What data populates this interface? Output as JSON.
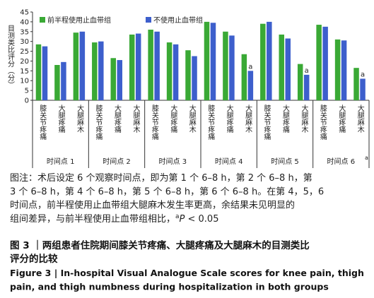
{
  "chart_data": {
    "type": "bar",
    "y_label": "目测类比评分（分）",
    "groups": [
      "时间点 1",
      "时间点 2",
      "时间点 3",
      "时间点 4",
      "时间点 5",
      "时间点 6"
    ],
    "categories": [
      "膝关节疼痛",
      "大腿疼痛",
      "大腿麻木",
      "膝关节疼痛",
      "大腿疼痛",
      "大腿麻木",
      "膝关节疼痛",
      "大腿疼痛",
      "大腿麻木",
      "膝关节疼痛",
      "大腿疼痛",
      "大腿麻木",
      "膝关节疼痛",
      "大腿疼痛",
      "大腿麻木",
      "膝关节疼痛",
      "大腿疼痛",
      "大腿麻木"
    ],
    "series": [
      {
        "name": "前半程使用止血带组",
        "color": "#3aa935",
        "values": [
          28.5,
          18,
          34.5,
          29.5,
          21.5,
          33.5,
          36,
          29.5,
          25.5,
          40,
          35,
          23.5,
          39,
          33.5,
          18.5,
          38.5,
          31,
          16.5
        ]
      },
      {
        "name": "不使用止血带组",
        "color": "#3d5fcc",
        "values": [
          27.5,
          19.5,
          35,
          30,
          20.5,
          34,
          35,
          28.5,
          22.5,
          39.5,
          33,
          15,
          40,
          31.5,
          13,
          37.5,
          30.5,
          11
        ]
      }
    ],
    "annotations": [
      {
        "text": "a",
        "series": 1,
        "index": 11
      },
      {
        "text": "a",
        "series": 1,
        "index": 14
      },
      {
        "text": "a",
        "series": 1,
        "index": 17
      }
    ],
    "group_annotation": {
      "text": "a",
      "group": 5
    },
    "ylim": [
      0,
      45
    ],
    "yticks": [
      0,
      5,
      10,
      15,
      20,
      25,
      30,
      35,
      40,
      45
    ]
  },
  "note": {
    "lines": [
      "图注：术后设定 6 个观察时间点，即为第 1 个 6–8 h，第 2 个 6–8 h，第",
      "3 个 6–8 h，第 4 个 6–8 h，第 5 个 6–8 h，第 6 个 6–8 h。在第 4，5，6",
      "时间点，前半程使用止血带组大腿麻木发生率更高，余结果未见明显的"
    ],
    "tail": {
      "text": "组间差异，与前半程使用止血带组相比，",
      "sup": "a",
      "italic": "P",
      "rest": " < 0.05"
    }
  },
  "caption_cn": [
    "图 3 ｜两组患者住院期间膝关节疼痛、大腿疼痛及大腿麻木的目测类比",
    "评分的比较"
  ],
  "caption_en": [
    "Figure 3 | In-hospital Visual Analogue Scale scores for knee pain, thigh",
    "pain, and thigh numbness during hospitalization in both groups"
  ]
}
